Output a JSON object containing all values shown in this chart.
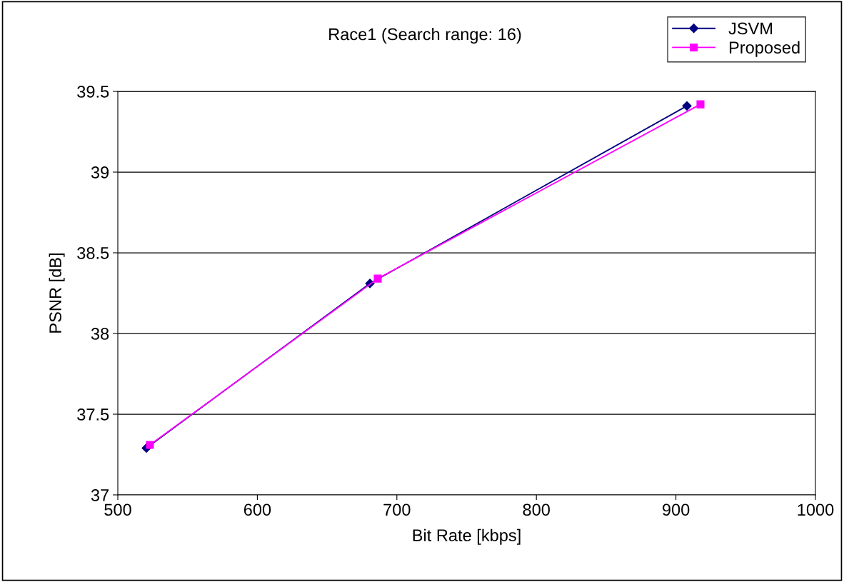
{
  "chart_data": {
    "type": "line",
    "title": "Race1 (Search range: 16)",
    "xlabel": "Bit Rate [kbps]",
    "ylabel": "PSNR [dB]",
    "xlim": [
      500,
      1000
    ],
    "xticks": [
      500,
      600,
      700,
      800,
      900,
      1000
    ],
    "ylim": [
      37,
      39.5
    ],
    "yticks": [
      37,
      37.5,
      38,
      38.5,
      39,
      39.5
    ],
    "grid": "y",
    "legend": "top right",
    "series": [
      {
        "name": "JSVM",
        "color": "#000080",
        "marker": "diamond",
        "x": [
          520.5,
          680.7,
          907.9
        ],
        "values": [
          37.29,
          38.31,
          39.41
        ]
      },
      {
        "name": "Proposed",
        "color": "#ff00ff",
        "marker": "square",
        "x": [
          523,
          686.3,
          917.6
        ],
        "values": [
          37.31,
          38.34,
          39.42
        ]
      }
    ]
  }
}
